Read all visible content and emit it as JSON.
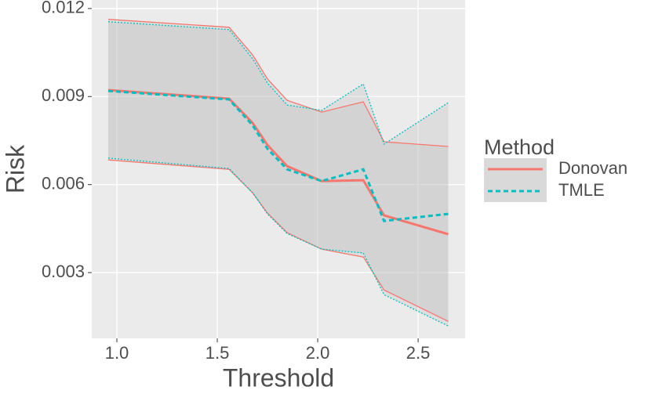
{
  "chart_data": {
    "type": "line",
    "x_label": "Threshold",
    "y_label": "Risk",
    "legend_title": "Method",
    "legend_position": "right",
    "grid": true,
    "xlim": [
      0.875,
      2.734
    ],
    "ylim": [
      0.00076,
      0.01229
    ],
    "xticks": [
      {
        "value": 1,
        "label": "1.0"
      },
      1.5,
      {
        "value": 2,
        "label": "2.0"
      },
      2.5
    ],
    "yticks": [
      0.003,
      0.006,
      0.009,
      0.012
    ],
    "x": [
      0.957,
      1.559,
      1.676,
      1.75,
      1.848,
      2.02,
      2.227,
      2.33,
      2.65
    ],
    "series": [
      {
        "name": "Donovan",
        "color": "#f8766d",
        "linetype": "solid",
        "values": [
          0.00922,
          0.00893,
          0.0081,
          0.00735,
          0.00663,
          0.00612,
          0.00615,
          0.00495,
          0.00431
        ],
        "upper": [
          0.01163,
          0.01136,
          0.01042,
          0.0096,
          0.00887,
          0.00847,
          0.00882,
          0.00746,
          0.0073
        ],
        "lower": [
          0.00684,
          0.00652,
          0.00572,
          0.00503,
          0.00436,
          0.0038,
          0.00353,
          0.00241,
          0.00134
        ]
      },
      {
        "name": "TMLE",
        "color": "#00bfc4",
        "linetype": "dashed",
        "values": [
          0.00919,
          0.0089,
          0.00802,
          0.00722,
          0.00652,
          0.00612,
          0.00652,
          0.00476,
          0.005
        ],
        "upper": [
          0.01155,
          0.01128,
          0.01029,
          0.00946,
          0.00871,
          0.00853,
          0.00943,
          0.00738,
          0.00879
        ],
        "lower": [
          0.0069,
          0.00655,
          0.00572,
          0.005,
          0.00433,
          0.0038,
          0.00367,
          0.00225,
          0.00118
        ]
      }
    ]
  }
}
